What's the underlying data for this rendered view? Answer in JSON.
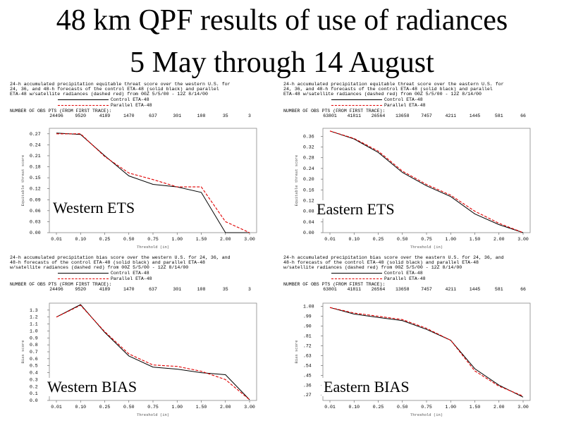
{
  "title_line1": "48 km QPF results of use of radiances",
  "title_line2": "5 May through 14 August",
  "panels": [
    {
      "header": "24-h accumulated precipitation equitable threat score over the western U.S. for\n24, 36, and 48-h forecasts of the control ETA-48 (solid black) and parallel\nETA-48 w/satellite radiances (dashed red) from 00Z 5/5/00 - 12Z 8/14/00",
      "legend_control": "Control ETA-48",
      "legend_parallel": "Parallel ETA-48",
      "npts_title": "NUMBER OF OBS PTS (FROM FIRST TRACE):",
      "npts": [
        "24496",
        "9520",
        "4189",
        "1470",
        "637",
        "301",
        "108",
        "35",
        "3"
      ],
      "ylabel": "Equitable threat score",
      "xlabel": "Threshold (in)",
      "region_label": "Western ETS"
    },
    {
      "header": "24-h accumulated precipitation equitable threat score over the eastern U.S. for\n24, 36, and 48-h forecasts of the control ETA-48 (solid black) and parallel\nETA-48 w/satellite radiances (dashed red) from 00Z 5/5/00 - 12Z 8/14/00",
      "legend_control": "Control ETA-48",
      "legend_parallel": "Parallel ETA-48",
      "npts_title": "NUMBER OF OBS PTS (FROM FIRST TRACE):",
      "npts": [
        "63801",
        "41811",
        "26564",
        "13658",
        "7457",
        "4211",
        "1445",
        "581",
        "66"
      ],
      "ylabel": "Equitable threat score",
      "xlabel": "Threshold (in)",
      "region_label": "Eastern ETS"
    },
    {
      "header": "24-h accumulated precipitation bias score over the western U.S. for 24, 36, and\n48-h forecasts of the control ETA-48 (solid black) and parallel ETA-48\nw/satellite radiances (dashed red) from 00Z 5/5/00 - 12Z 8/14/00",
      "legend_control": "Control ETA-48",
      "legend_parallel": "Parallel ETA-48",
      "npts_title": "NUMBER OF OBS PTS (FROM FIRST TRACE):",
      "npts": [
        "24496",
        "9520",
        "4189",
        "1470",
        "637",
        "301",
        "108",
        "35",
        "3"
      ],
      "ylabel": "Bias score",
      "xlabel": "Threshold (in)",
      "region_label": "Western BIAS"
    },
    {
      "header": "24-h accumulated precipitation bias score over the eastern U.S. for 24, 36, and\n48-h forecasts of the control ETA-48 (solid black) and parallel ETA-48\nw/satellite radiances (dashed red) from 00Z 5/5/00 - 12Z 8/14/00",
      "legend_control": "Control ETA-48",
      "legend_parallel": "Parallel ETA-48",
      "npts_title": "NUMBER OF OBS PTS (FROM FIRST TRACE):",
      "npts": [
        "63801",
        "41811",
        "26564",
        "13658",
        "7457",
        "4211",
        "1445",
        "581",
        "66"
      ],
      "ylabel": "Bias score",
      "xlabel": "Threshold (in)",
      "region_label": "Eastern BIAS"
    }
  ],
  "colors": {
    "control": "#000000",
    "parallel": "#e00000"
  },
  "chart_data": [
    {
      "type": "line",
      "x": [
        "0.01",
        "0.10",
        "0.25",
        "0.50",
        "0.75",
        "1.00",
        "1.50",
        "2.00",
        "3.00"
      ],
      "yticks": [
        "0.00",
        "0.03",
        "0.06",
        "0.09",
        "0.12",
        "0.15",
        "0.18",
        "0.21",
        "0.24",
        "0.27"
      ],
      "ylim": [
        0,
        0.285
      ],
      "series": [
        {
          "name": "Control ETA-48",
          "values": [
            0.272,
            0.268,
            0.21,
            0.155,
            0.132,
            0.125,
            0.11,
            0.0,
            0.0
          ]
        },
        {
          "name": "Parallel ETA-48",
          "values": [
            0.27,
            0.27,
            0.208,
            0.163,
            0.145,
            0.125,
            0.125,
            0.03,
            0.0
          ]
        }
      ]
    },
    {
      "type": "line",
      "x": [
        "0.01",
        "0.10",
        "0.25",
        "0.50",
        "0.75",
        "1.00",
        "1.50",
        "2.00",
        "3.00"
      ],
      "yticks": [
        "0.00",
        "0.04",
        "0.08",
        "0.12",
        "0.16",
        "0.20",
        "0.24",
        "0.28",
        "0.32",
        "0.36"
      ],
      "ylim": [
        0,
        0.39
      ],
      "series": [
        {
          "name": "Control ETA-48",
          "values": [
            0.38,
            0.35,
            0.3,
            0.225,
            0.175,
            0.135,
            0.07,
            0.03,
            0.0
          ]
        },
        {
          "name": "Parallel ETA-48",
          "values": [
            0.38,
            0.352,
            0.305,
            0.23,
            0.18,
            0.14,
            0.08,
            0.035,
            0.0
          ]
        }
      ]
    },
    {
      "type": "line",
      "x": [
        "0.01",
        "0.10",
        "0.25",
        "0.50",
        "0.75",
        "1.00",
        "1.50",
        "2.00",
        "3.00"
      ],
      "yticks": [
        "0.0",
        "0.1",
        "0.2",
        "0.3",
        "0.4",
        "0.5",
        "0.6",
        "0.7",
        "0.8",
        "0.9",
        "1.0",
        "1.1",
        "1.2",
        "1.3"
      ],
      "ylim": [
        0,
        1.4
      ],
      "series": [
        {
          "name": "Control ETA-48",
          "values": [
            1.2,
            1.38,
            0.98,
            0.64,
            0.48,
            0.45,
            0.4,
            0.37,
            0.01
          ]
        },
        {
          "name": "Parallel ETA-48",
          "values": [
            1.2,
            1.37,
            0.99,
            0.67,
            0.51,
            0.49,
            0.42,
            0.3,
            0.01
          ]
        }
      ]
    },
    {
      "type": "line",
      "x": [
        "0.01",
        "0.10",
        "0.25",
        "0.50",
        "0.75",
        "1.00",
        "1.50",
        "2.00",
        "3.00"
      ],
      "yticks": [
        ".27",
        ".36",
        ".45",
        ".54",
        ".63",
        ".72",
        ".81",
        ".90",
        ".99",
        "1.08"
      ],
      "ylim": [
        0.22,
        1.11
      ],
      "series": [
        {
          "name": "Control ETA-48",
          "values": [
            1.07,
            1.01,
            0.98,
            0.95,
            0.87,
            0.77,
            0.51,
            0.36,
            0.25
          ]
        },
        {
          "name": "Parallel ETA-48",
          "values": [
            1.07,
            1.02,
            0.99,
            0.96,
            0.88,
            0.77,
            0.49,
            0.35,
            0.26
          ]
        }
      ]
    }
  ]
}
